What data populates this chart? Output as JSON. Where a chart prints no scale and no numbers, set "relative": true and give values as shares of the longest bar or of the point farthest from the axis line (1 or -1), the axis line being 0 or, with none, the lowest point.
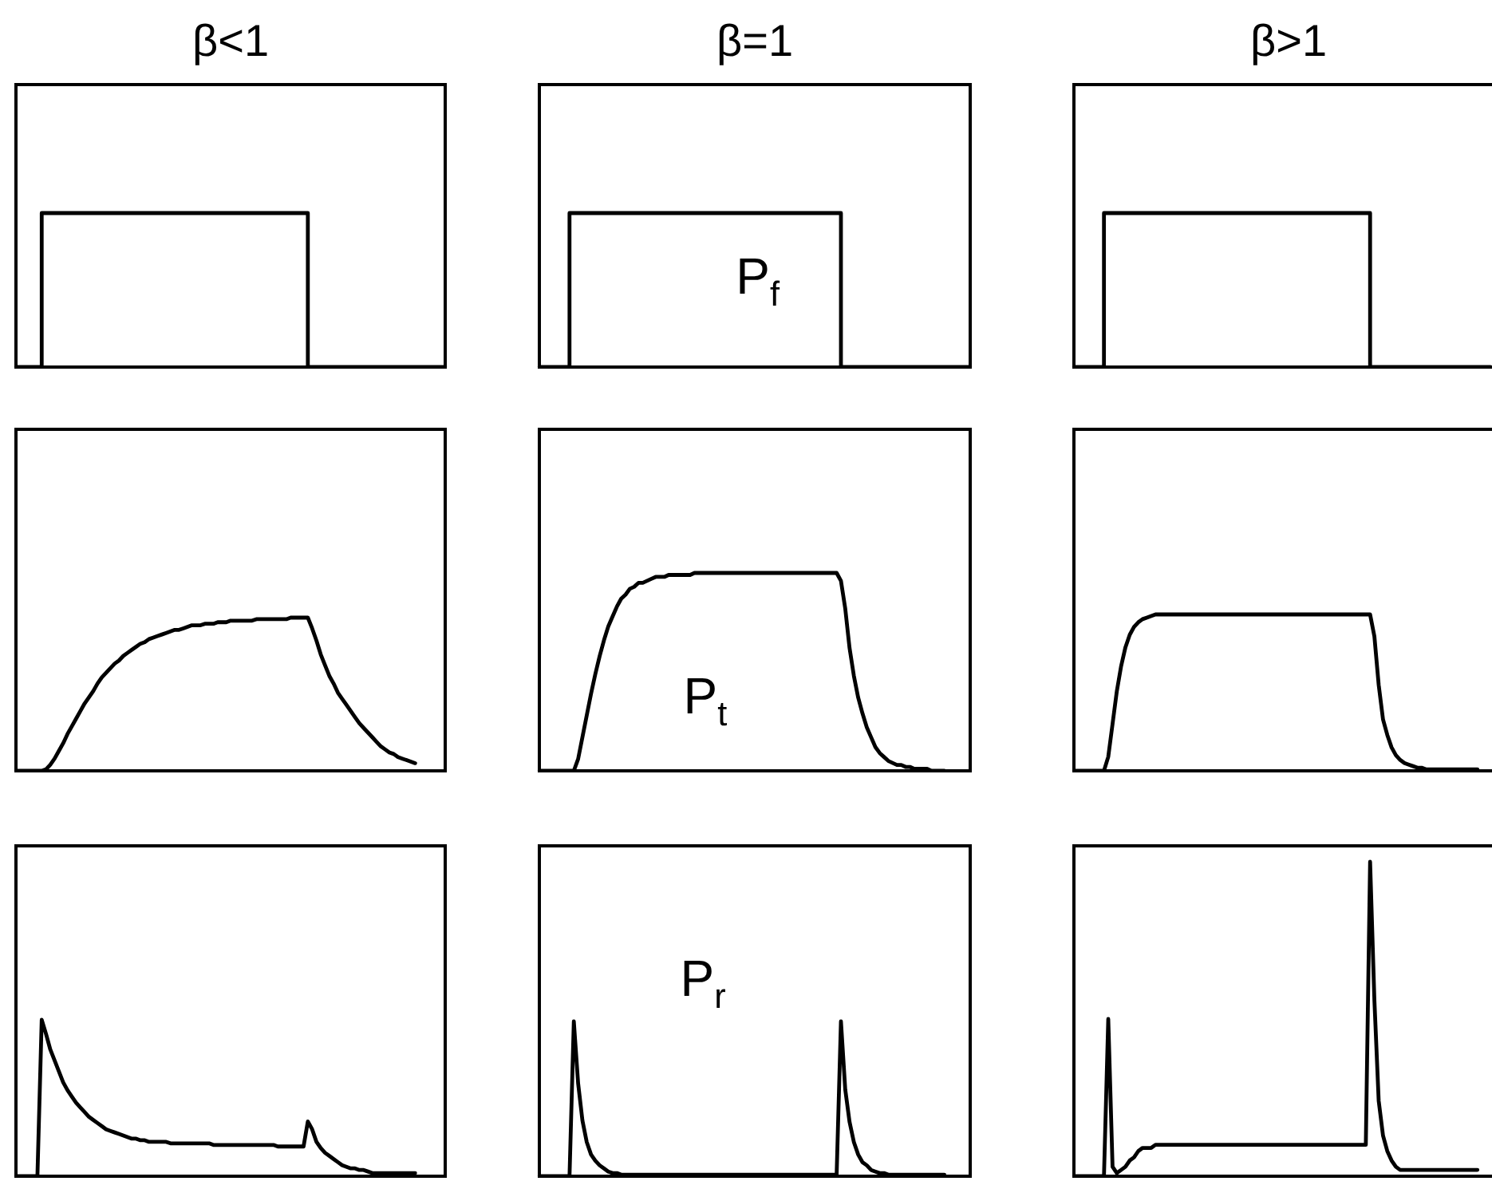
{
  "chart_data": [
    {
      "type": "step",
      "title": "β<1",
      "relative": true,
      "color": "#000000",
      "categories": [
        null,
        null,
        null,
        null,
        null,
        null,
        null,
        null,
        null,
        null,
        null,
        null,
        null,
        null,
        null,
        null,
        null,
        null,
        null,
        null,
        null,
        null,
        null,
        null,
        null,
        null,
        null,
        null,
        null,
        null,
        null,
        null,
        null,
        null,
        null,
        null,
        null,
        null,
        null,
        null,
        null,
        null,
        null,
        null,
        null,
        null,
        null,
        null,
        null,
        null,
        null,
        null,
        null,
        null,
        null,
        null,
        null,
        null,
        null,
        null,
        null,
        null,
        null,
        null,
        null,
        null,
        null,
        null,
        null,
        null,
        null,
        null,
        null,
        null,
        null,
        null,
        null,
        null,
        null,
        null,
        null,
        null,
        null,
        null,
        null,
        null,
        null,
        null,
        null,
        null,
        null,
        null,
        null,
        null,
        null,
        null,
        null,
        null,
        null,
        null,
        null
      ],
      "values": [
        0,
        0,
        0,
        0,
        0,
        0,
        1,
        1,
        1,
        1,
        1,
        1,
        1,
        1,
        1,
        1,
        1,
        1,
        1,
        1,
        1,
        1,
        1,
        1,
        1,
        1,
        1,
        1,
        1,
        1,
        1,
        1,
        1,
        1,
        1,
        1,
        1,
        1,
        1,
        1,
        1,
        1,
        1,
        1,
        1,
        1,
        1,
        1,
        1,
        1,
        1,
        1,
        1,
        1,
        1,
        1,
        1,
        1,
        1,
        1,
        1,
        1,
        1,
        1,
        1,
        1,
        1,
        1,
        0,
        0,
        0,
        0,
        0,
        0,
        0,
        0,
        0,
        0,
        0,
        0,
        0,
        0,
        0,
        0,
        0,
        0,
        0,
        0,
        0,
        0,
        0,
        0,
        0,
        0,
        0,
        0,
        0,
        0,
        0,
        0,
        0
      ]
    },
    {
      "type": "step",
      "title": "β=1",
      "relative": true,
      "color": "#000000",
      "annotations": [
        "P$_{f}$"
      ],
      "categories": [
        null,
        null,
        null,
        null,
        null,
        null,
        null,
        null,
        null,
        null,
        null,
        null,
        null,
        null,
        null,
        null,
        null,
        null,
        null,
        null,
        null,
        null,
        null,
        null,
        null,
        null,
        null,
        null,
        null,
        null,
        null,
        null,
        null,
        null,
        null,
        null,
        null,
        null,
        null,
        null,
        null,
        null,
        null,
        null,
        null,
        null,
        null,
        null,
        null,
        null,
        null,
        null,
        null,
        null,
        null,
        null,
        null,
        null,
        null,
        null,
        null,
        null,
        null,
        null,
        null,
        null,
        null,
        null,
        null,
        null,
        null,
        null,
        null,
        null,
        null,
        null,
        null,
        null,
        null,
        null,
        null,
        null,
        null,
        null,
        null,
        null,
        null,
        null,
        null,
        null,
        null,
        null,
        null,
        null,
        null,
        null,
        null,
        null,
        null,
        null,
        null
      ],
      "values": [
        0,
        0,
        0,
        0,
        0,
        0,
        0,
        1,
        1,
        1,
        1,
        1,
        1,
        1,
        1,
        1,
        1,
        1,
        1,
        1,
        1,
        1,
        1,
        1,
        1,
        1,
        1,
        1,
        1,
        1,
        1,
        1,
        1,
        1,
        1,
        1,
        1,
        1,
        1,
        1,
        1,
        1,
        1,
        1,
        1,
        1,
        1,
        1,
        1,
        1,
        1,
        1,
        1,
        1,
        1,
        1,
        1,
        1,
        1,
        1,
        1,
        1,
        1,
        1,
        1,
        1,
        1,
        1,
        1,
        1,
        0,
        0,
        0,
        0,
        0,
        0,
        0,
        0,
        0,
        0,
        0,
        0,
        0,
        0,
        0,
        0,
        0,
        0,
        0,
        0,
        0,
        0,
        0,
        0,
        0,
        0,
        0,
        0,
        0,
        0,
        0
      ]
    },
    {
      "type": "step",
      "title": "β>1",
      "relative": true,
      "color": "#000000",
      "categories": [
        null,
        null,
        null,
        null,
        null,
        null,
        null,
        null,
        null,
        null,
        null,
        null,
        null,
        null,
        null,
        null,
        null,
        null,
        null,
        null,
        null,
        null,
        null,
        null,
        null,
        null,
        null,
        null,
        null,
        null,
        null,
        null,
        null,
        null,
        null,
        null,
        null,
        null,
        null,
        null,
        null,
        null,
        null,
        null,
        null,
        null,
        null,
        null,
        null,
        null,
        null,
        null,
        null,
        null,
        null,
        null,
        null,
        null,
        null,
        null,
        null,
        null,
        null,
        null,
        null,
        null,
        null,
        null,
        null,
        null,
        null,
        null,
        null,
        null,
        null,
        null,
        null,
        null,
        null,
        null,
        null,
        null,
        null,
        null,
        null,
        null,
        null,
        null,
        null,
        null,
        null,
        null,
        null,
        null,
        null,
        null,
        null,
        null,
        null,
        null,
        null
      ],
      "values": [
        0,
        0,
        0,
        0,
        0,
        0,
        0,
        1,
        1,
        1,
        1,
        1,
        1,
        1,
        1,
        1,
        1,
        1,
        1,
        1,
        1,
        1,
        1,
        1,
        1,
        1,
        1,
        1,
        1,
        1,
        1,
        1,
        1,
        1,
        1,
        1,
        1,
        1,
        1,
        1,
        1,
        1,
        1,
        1,
        1,
        1,
        1,
        1,
        1,
        1,
        1,
        1,
        1,
        1,
        1,
        1,
        1,
        1,
        1,
        1,
        1,
        1,
        1,
        1,
        1,
        1,
        1,
        1,
        1,
        0,
        0,
        0,
        0,
        0,
        0,
        0,
        0,
        0,
        0,
        0,
        0,
        0,
        0,
        0,
        0,
        0,
        0,
        0,
        0,
        0,
        0,
        0,
        0,
        0,
        0,
        0,
        0,
        0,
        null,
        null,
        null
      ]
    },
    {
      "type": "line",
      "relative": true,
      "color": "#000000",
      "categories": [
        null,
        null,
        null,
        null,
        null,
        null,
        null,
        null,
        null,
        null,
        null,
        null,
        null,
        null,
        null,
        null,
        null,
        null,
        null,
        null,
        null,
        null,
        null,
        null,
        null,
        null,
        null,
        null,
        null,
        null,
        null,
        null,
        null,
        null,
        null,
        null,
        null,
        null,
        null,
        null,
        null,
        null,
        null,
        null,
        null,
        null,
        null,
        null,
        null,
        null,
        null,
        null,
        null,
        null,
        null,
        null,
        null,
        null,
        null,
        null,
        null,
        null,
        null,
        null,
        null,
        null,
        null,
        null,
        null,
        null,
        null,
        null,
        null,
        null,
        null,
        null,
        null,
        null,
        null,
        null,
        null,
        null,
        null,
        null,
        null,
        null,
        null,
        null,
        null,
        null,
        null,
        null,
        null,
        null,
        null,
        null,
        null,
        null,
        null,
        null,
        null
      ],
      "values": [
        0,
        0,
        0,
        0,
        0,
        0,
        0,
        0.01,
        0.04,
        0.08,
        0.13,
        0.18,
        0.24,
        0.29,
        0.34,
        0.39,
        0.44,
        0.48,
        0.52,
        0.57,
        0.61,
        0.64,
        0.67,
        0.7,
        0.72,
        0.75,
        0.77,
        0.79,
        0.81,
        0.83,
        0.84,
        0.86,
        0.87,
        0.88,
        0.89,
        0.9,
        0.91,
        0.92,
        0.92,
        0.93,
        0.94,
        0.95,
        0.95,
        0.95,
        0.96,
        0.96,
        0.96,
        0.97,
        0.97,
        0.97,
        0.98,
        0.98,
        0.98,
        0.98,
        0.98,
        0.98,
        0.99,
        0.99,
        0.99,
        0.99,
        0.99,
        0.99,
        0.99,
        0.99,
        1,
        1,
        1,
        1,
        1,
        0.93,
        0.85,
        0.76,
        0.69,
        0.62,
        0.57,
        0.51,
        0.47,
        0.43,
        0.39,
        0.35,
        0.31,
        0.28,
        0.25,
        0.22,
        0.19,
        0.16,
        0.14,
        0.12,
        0.11,
        0.09,
        0.08,
        0.07,
        0.06,
        0.05,
        null,
        null,
        null,
        null,
        null,
        null,
        null
      ]
    },
    {
      "type": "line",
      "relative": true,
      "color": "#000000",
      "annotations": [
        "P$_{t}$"
      ],
      "categories": [
        null,
        null,
        null,
        null,
        null,
        null,
        null,
        null,
        null,
        null,
        null,
        null,
        null,
        null,
        null,
        null,
        null,
        null,
        null,
        null,
        null,
        null,
        null,
        null,
        null,
        null,
        null,
        null,
        null,
        null,
        null,
        null,
        null,
        null,
        null,
        null,
        null,
        null,
        null,
        null,
        null,
        null,
        null,
        null,
        null,
        null,
        null,
        null,
        null,
        null,
        null,
        null,
        null,
        null,
        null,
        null,
        null,
        null,
        null,
        null,
        null,
        null,
        null,
        null,
        null,
        null,
        null,
        null,
        null,
        null,
        null,
        null,
        null,
        null,
        null,
        null,
        null,
        null,
        null,
        null,
        null,
        null,
        null,
        null,
        null,
        null,
        null,
        null,
        null,
        null,
        null,
        null,
        null,
        null,
        null,
        null,
        null,
        null,
        null,
        null,
        null
      ],
      "values": [
        0,
        0,
        0,
        0,
        0,
        0,
        0,
        0,
        0,
        0.06,
        0.17,
        0.28,
        0.39,
        0.49,
        0.58,
        0.66,
        0.73,
        0.78,
        0.83,
        0.87,
        0.89,
        0.92,
        0.93,
        0.95,
        0.95,
        0.96,
        0.97,
        0.98,
        0.98,
        0.98,
        0.99,
        0.99,
        0.99,
        0.99,
        0.99,
        0.99,
        1,
        1,
        1,
        1,
        1,
        1,
        1,
        1,
        1,
        1,
        1,
        1,
        1,
        1,
        1,
        1,
        1,
        1,
        1,
        1,
        1,
        1,
        1,
        1,
        1,
        1,
        1,
        1,
        1,
        1,
        1,
        1,
        1,
        1,
        0.96,
        0.82,
        0.62,
        0.48,
        0.37,
        0.29,
        0.22,
        0.17,
        0.12,
        0.09,
        0.07,
        0.05,
        0.04,
        0.03,
        0.03,
        0.02,
        0.02,
        0.01,
        0.01,
        0.01,
        0.01,
        0,
        0,
        0,
        0,
        null,
        null,
        null,
        null,
        null,
        null
      ]
    },
    {
      "type": "line",
      "relative": true,
      "color": "#000000",
      "categories": [
        null,
        null,
        null,
        null,
        null,
        null,
        null,
        null,
        null,
        null,
        null,
        null,
        null,
        null,
        null,
        null,
        null,
        null,
        null,
        null,
        null,
        null,
        null,
        null,
        null,
        null,
        null,
        null,
        null,
        null,
        null,
        null,
        null,
        null,
        null,
        null,
        null,
        null,
        null,
        null,
        null,
        null,
        null,
        null,
        null,
        null,
        null,
        null,
        null,
        null,
        null,
        null,
        null,
        null,
        null,
        null,
        null,
        null,
        null,
        null,
        null,
        null,
        null,
        null,
        null,
        null,
        null,
        null,
        null,
        null,
        null,
        null,
        null,
        null,
        null,
        null,
        null,
        null,
        null,
        null,
        null,
        null,
        null,
        null,
        null,
        null,
        null,
        null,
        null,
        null,
        null,
        null,
        null,
        null,
        null,
        null,
        null,
        null,
        null,
        null,
        null
      ],
      "values": [
        0,
        0,
        0,
        0,
        0,
        0,
        0,
        0,
        0.09,
        0.3,
        0.51,
        0.67,
        0.79,
        0.87,
        0.92,
        0.95,
        0.97,
        0.98,
        0.99,
        1,
        1,
        1,
        1,
        1,
        1,
        1,
        1,
        1,
        1,
        1,
        1,
        1,
        1,
        1,
        1,
        1,
        1,
        1,
        1,
        1,
        1,
        1,
        1,
        1,
        1,
        1,
        1,
        1,
        1,
        1,
        1,
        1,
        1,
        1,
        1,
        1,
        1,
        1,
        1,
        1,
        1,
        1,
        1,
        1,
        1,
        1,
        1,
        1,
        1,
        1,
        0.86,
        0.55,
        0.33,
        0.23,
        0.15,
        0.1,
        0.07,
        0.05,
        0.04,
        0.03,
        0.02,
        0.02,
        0.01,
        0.01,
        0.01,
        0.01,
        0.01,
        0.01,
        0.01,
        0.01,
        0.01,
        0.01,
        0.01,
        0.01,
        0.01,
        null,
        null,
        null,
        null,
        null,
        null
      ]
    },
    {
      "type": "line",
      "relative": true,
      "color": "#000000",
      "categories": [
        null,
        null,
        null,
        null,
        null,
        null,
        null,
        null,
        null,
        null,
        null,
        null,
        null,
        null,
        null,
        null,
        null,
        null,
        null,
        null,
        null,
        null,
        null,
        null,
        null,
        null,
        null,
        null,
        null,
        null,
        null,
        null,
        null,
        null,
        null,
        null,
        null,
        null,
        null,
        null,
        null,
        null,
        null,
        null,
        null,
        null,
        null,
        null,
        null,
        null,
        null,
        null,
        null,
        null,
        null,
        null,
        null,
        null,
        null,
        null,
        null,
        null,
        null,
        null,
        null,
        null,
        null,
        null,
        null,
        null,
        null,
        null,
        null,
        null,
        null,
        null,
        null,
        null,
        null,
        null,
        null,
        null,
        null,
        null,
        null,
        null,
        null,
        null,
        null,
        null,
        null,
        null,
        null,
        null,
        null,
        null,
        null,
        null,
        null,
        null,
        null
      ],
      "values": [
        0,
        0,
        0,
        0,
        0,
        0,
        1,
        0.91,
        0.81,
        0.74,
        0.67,
        0.6,
        0.55,
        0.51,
        0.47,
        0.44,
        0.41,
        0.38,
        0.36,
        0.34,
        0.32,
        0.3,
        0.29,
        0.28,
        0.27,
        0.26,
        0.25,
        0.24,
        0.24,
        0.23,
        0.23,
        0.22,
        0.22,
        0.22,
        0.22,
        0.22,
        0.21,
        0.21,
        0.21,
        0.21,
        0.21,
        0.21,
        0.21,
        0.21,
        0.21,
        0.21,
        0.2,
        0.2,
        0.2,
        0.2,
        0.2,
        0.2,
        0.2,
        0.2,
        0.2,
        0.2,
        0.2,
        0.2,
        0.2,
        0.2,
        0.2,
        0.19,
        0.19,
        0.19,
        0.19,
        0.19,
        0.19,
        0.19,
        0.35,
        0.3,
        0.22,
        0.18,
        0.15,
        0.13,
        0.11,
        0.09,
        0.07,
        0.06,
        0.05,
        0.05,
        0.04,
        0.04,
        0.03,
        0.02,
        0.02,
        0.02,
        0.02,
        0.02,
        0.02,
        0.02,
        0.02,
        0.02,
        0.02,
        0.02,
        null,
        null,
        null,
        null,
        null,
        null,
        null
      ]
    },
    {
      "type": "line",
      "relative": true,
      "color": "#000000",
      "annotations": [
        "P$_{r}$"
      ],
      "categories": [
        null,
        null,
        null,
        null,
        null,
        null,
        null,
        null,
        null,
        null,
        null,
        null,
        null,
        null,
        null,
        null,
        null,
        null,
        null,
        null,
        null,
        null,
        null,
        null,
        null,
        null,
        null,
        null,
        null,
        null,
        null,
        null,
        null,
        null,
        null,
        null,
        null,
        null,
        null,
        null,
        null,
        null,
        null,
        null,
        null,
        null,
        null,
        null,
        null,
        null,
        null,
        null,
        null,
        null,
        null,
        null,
        null,
        null,
        null,
        null,
        null,
        null,
        null,
        null,
        null,
        null,
        null,
        null,
        null,
        null,
        null,
        null,
        null,
        null,
        null,
        null,
        null,
        null,
        null,
        null,
        null,
        null,
        null,
        null,
        null,
        null,
        null,
        null,
        null,
        null,
        null,
        null,
        null,
        null,
        null,
        null,
        null,
        null,
        null,
        null,
        null
      ],
      "values": [
        0,
        0,
        0,
        0,
        0,
        0,
        0,
        0,
        1,
        0.6,
        0.36,
        0.22,
        0.14,
        0.1,
        0.07,
        0.05,
        0.03,
        0.02,
        0.02,
        0.01,
        0.01,
        0.01,
        0.01,
        0.01,
        0.01,
        0.01,
        0.01,
        0.01,
        0.01,
        0.01,
        0.01,
        0.01,
        0.01,
        0.01,
        0.01,
        0.01,
        0.01,
        0.01,
        0.01,
        0.01,
        0.01,
        0.01,
        0.01,
        0.01,
        0.01,
        0.01,
        0.01,
        0.01,
        0.01,
        0.01,
        0.01,
        0.01,
        0.01,
        0.01,
        0.01,
        0.01,
        0.01,
        0.01,
        0.01,
        0.01,
        0.01,
        0.01,
        0.01,
        0.01,
        0.01,
        0.01,
        0.01,
        0.01,
        0.01,
        0.01,
        1,
        0.56,
        0.35,
        0.22,
        0.14,
        0.09,
        0.07,
        0.04,
        0.03,
        0.02,
        0.02,
        0.01,
        0.01,
        0.01,
        0.01,
        0.01,
        0.01,
        0.01,
        0.01,
        0.01,
        0.01,
        0.01,
        0.01,
        0.01,
        0.01,
        null,
        null,
        null,
        null,
        null,
        null
      ]
    },
    {
      "type": "line",
      "relative": true,
      "color": "#000000",
      "categories": [
        null,
        null,
        null,
        null,
        null,
        null,
        null,
        null,
        null,
        null,
        null,
        null,
        null,
        null,
        null,
        null,
        null,
        null,
        null,
        null,
        null,
        null,
        null,
        null,
        null,
        null,
        null,
        null,
        null,
        null,
        null,
        null,
        null,
        null,
        null,
        null,
        null,
        null,
        null,
        null,
        null,
        null,
        null,
        null,
        null,
        null,
        null,
        null,
        null,
        null,
        null,
        null,
        null,
        null,
        null,
        null,
        null,
        null,
        null,
        null,
        null,
        null,
        null,
        null,
        null,
        null,
        null,
        null,
        null,
        null,
        null,
        null,
        null,
        null,
        null,
        null,
        null,
        null,
        null,
        null,
        null,
        null,
        null,
        null,
        null,
        null,
        null,
        null,
        null,
        null,
        null,
        null,
        null,
        null,
        null,
        null,
        null,
        null,
        null,
        null,
        null
      ],
      "values": [
        0,
        0,
        0,
        0,
        0,
        0,
        0,
        0,
        0.5,
        0.03,
        0.01,
        0.02,
        0.03,
        0.05,
        0.06,
        0.08,
        0.09,
        0.09,
        0.09,
        0.1,
        0.1,
        0.1,
        0.1,
        0.1,
        0.1,
        0.1,
        0.1,
        0.1,
        0.1,
        0.1,
        0.1,
        0.1,
        0.1,
        0.1,
        0.1,
        0.1,
        0.1,
        0.1,
        0.1,
        0.1,
        0.1,
        0.1,
        0.1,
        0.1,
        0.1,
        0.1,
        0.1,
        0.1,
        0.1,
        0.1,
        0.1,
        0.1,
        0.1,
        0.1,
        0.1,
        0.1,
        0.1,
        0.1,
        0.1,
        0.1,
        0.1,
        0.1,
        0.1,
        0.1,
        0.1,
        0.1,
        0.1,
        0.1,
        0.1,
        1,
        0.56,
        0.24,
        0.13,
        0.08,
        0.05,
        0.03,
        0.02,
        0.02,
        0.02,
        0.02,
        0.02,
        0.02,
        0.02,
        0.02,
        0.02,
        0.02,
        0.02,
        0.02,
        0.02,
        0.02,
        0.02,
        0.02,
        0.02,
        0.02,
        0.02,
        null,
        null,
        null,
        null,
        null,
        null
      ]
    }
  ]
}
